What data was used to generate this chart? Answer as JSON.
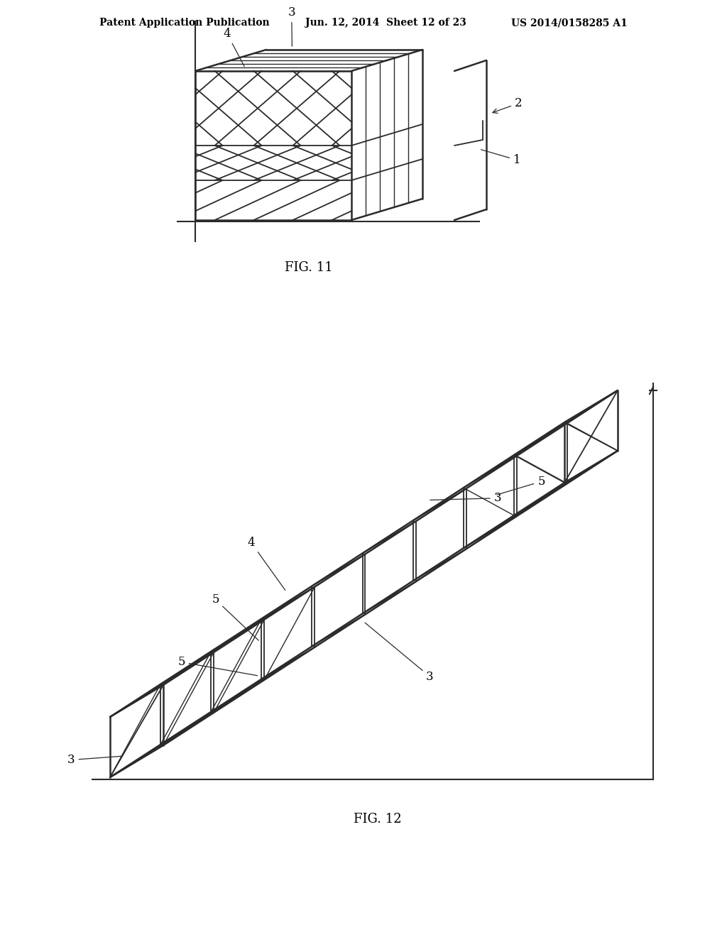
{
  "bg_color": "#ffffff",
  "text_color": "#000000",
  "line_color": "#2a2a2a",
  "header_left": "Patent Application Publication",
  "header_mid": "Jun. 12, 2014  Sheet 12 of 23",
  "header_right": "US 2014/0158285 A1",
  "fig11_label": "FIG. 11",
  "fig12_label": "FIG. 12",
  "header_fontsize": 10,
  "label_fontsize": 13,
  "annot_fontsize": 12
}
